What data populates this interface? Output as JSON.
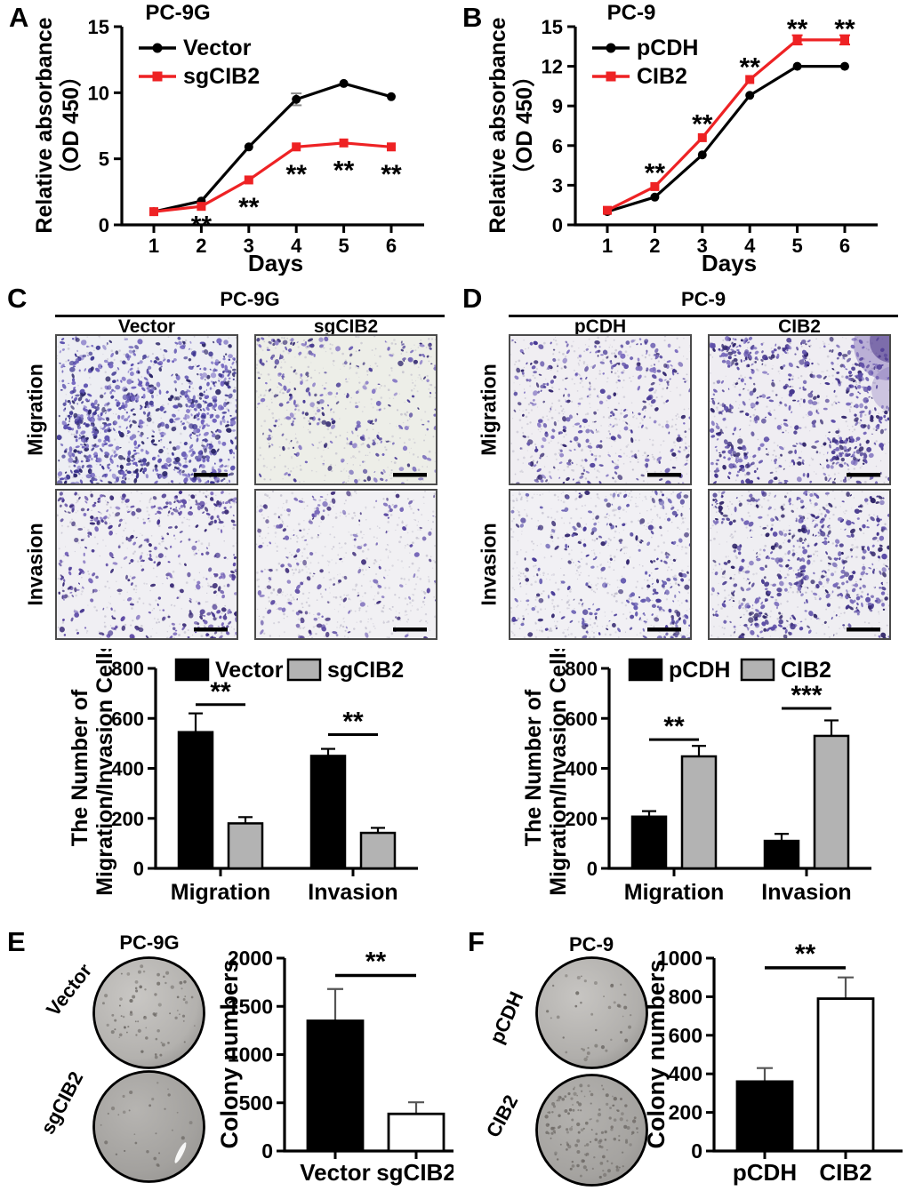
{
  "colors": {
    "accent_red": "#ee2224",
    "black": "#000000",
    "bar_gray": "#b3b3b3",
    "bar_white": "#ffffff",
    "stain_purple": "#5a4fae",
    "dish_gray": "#b3b1ae"
  },
  "panels": {
    "A": {
      "letter": "A"
    },
    "B": {
      "letter": "B"
    },
    "C": {
      "letter": "C",
      "header": "PC-9G",
      "columns": [
        "Vector",
        "sgCIB2"
      ],
      "rows": [
        "Migration",
        "Invasion"
      ],
      "micrographs": [
        {
          "seed": 11,
          "cells": 950,
          "speckles": 260,
          "bg": "#edeef3",
          "palette": [
            "#3c3490",
            "#5a4fae",
            "#6f61bd",
            "#2c2668",
            "#8a7fca"
          ],
          "cluster": 0.3
        },
        {
          "seed": 12,
          "cells": 300,
          "speckles": 420,
          "bg": "#edeee8",
          "palette": [
            "#4a3c96",
            "#6a5cb5",
            "#8577c5",
            "#342a72"
          ],
          "cluster": 0.4
        },
        {
          "seed": 13,
          "cells": 430,
          "speckles": 330,
          "bg": "#f0eff3",
          "palette": [
            "#45348e",
            "#5c48a4",
            "#3a2b76",
            "#7a68bb"
          ],
          "cluster": 0.5
        },
        {
          "seed": 14,
          "cells": 165,
          "speckles": 520,
          "bg": "#f1f0f3",
          "palette": [
            "#5a48a2",
            "#7666b8",
            "#46357f"
          ],
          "cluster": 0.25
        }
      ]
    },
    "D": {
      "letter": "D",
      "header": "PC-9",
      "columns": [
        "pCDH",
        "CIB2"
      ],
      "rows": [
        "Migration",
        "Invasion"
      ],
      "micrographs": [
        {
          "seed": 21,
          "cells": 330,
          "speckles": 470,
          "bg": "#f0eef2",
          "palette": [
            "#473896",
            "#6253ab",
            "#35286f",
            "#7e6fc0"
          ],
          "cluster": 0.3
        },
        {
          "seed": 22,
          "cells": 620,
          "speckles": 300,
          "bg": "#efedf2",
          "palette": [
            "#43348c",
            "#5d4ea8",
            "#31266b",
            "#7668ba"
          ],
          "cluster": 0.45,
          "blob": true
        },
        {
          "seed": 23,
          "cells": 260,
          "speckles": 560,
          "bg": "#f1f0f4",
          "palette": [
            "#483a97",
            "#655bb0",
            "#372b72"
          ],
          "cluster": 0.3
        },
        {
          "seed": 24,
          "cells": 560,
          "speckles": 380,
          "bg": "#efeef2",
          "palette": [
            "#41338a",
            "#5b4ca6",
            "#2f2467",
            "#7365b7"
          ],
          "cluster": 0.4
        }
      ]
    },
    "E": {
      "letter": "E",
      "title": "PC-9G",
      "dish_labels": [
        "Vector",
        "sgCIB2"
      ],
      "dishes": [
        {
          "seed": 31,
          "colonies": 75,
          "light": "#c9c7c4",
          "base": "#b3b1ae"
        },
        {
          "seed": 32,
          "colonies": 30,
          "light": "#b6b4b1",
          "base": "#a3a19e",
          "streak": true
        }
      ]
    },
    "F": {
      "letter": "F",
      "title": "PC-9",
      "dish_labels": [
        "pCDH",
        "CIB2"
      ],
      "dishes": [
        {
          "seed": 41,
          "colonies": 42,
          "light": "#c7c5c2",
          "base": "#b0aeab"
        },
        {
          "seed": 42,
          "colonies": 150,
          "light": "#b4b2af",
          "base": "#a5a3a0"
        }
      ]
    }
  },
  "chart_data": [
    {
      "panel": "A",
      "type": "line",
      "title": "PC-9G",
      "xlabel": "Days",
      "ylabel": [
        "Relative absorbance",
        "（OD 450）"
      ],
      "x": [
        1,
        2,
        3,
        4,
        5,
        6
      ],
      "ylim": [
        0,
        15
      ],
      "yticks": [
        0,
        5,
        10,
        15
      ],
      "series": [
        {
          "name": "Vector",
          "color": "#000000",
          "marker": "circle",
          "values": [
            1.0,
            1.8,
            5.9,
            9.5,
            10.7,
            9.7
          ],
          "errors": [
            0,
            0,
            0,
            0.45,
            0,
            0
          ]
        },
        {
          "name": "sgCIB2",
          "color": "#ee2224",
          "marker": "square",
          "values": [
            1.0,
            1.4,
            3.4,
            5.9,
            6.2,
            5.9
          ],
          "errors": [
            0,
            0,
            0,
            0,
            0,
            0
          ]
        }
      ],
      "significance": {
        "label": "**",
        "marks": [
          {
            "day": 2,
            "y": 0.45
          },
          {
            "day": 3,
            "y": 1.8
          },
          {
            "day": 4,
            "y": 4.3
          },
          {
            "day": 5,
            "y": 4.6
          },
          {
            "day": 6,
            "y": 4.3
          }
        ]
      }
    },
    {
      "panel": "B",
      "type": "line",
      "title": "PC-9",
      "xlabel": "Days",
      "ylabel": [
        "Relative absorbance",
        "（OD 450）"
      ],
      "x": [
        1,
        2,
        3,
        4,
        5,
        6
      ],
      "ylim": [
        0,
        15
      ],
      "yticks": [
        0,
        3,
        6,
        9,
        12,
        15
      ],
      "series": [
        {
          "name": "pCDH",
          "color": "#000000",
          "marker": "circle",
          "values": [
            1.0,
            2.1,
            5.3,
            9.8,
            12.0,
            12.0
          ],
          "errors": [
            0,
            0,
            0,
            0,
            0,
            0
          ]
        },
        {
          "name": "CIB2",
          "color": "#ee2224",
          "marker": "square",
          "values": [
            1.1,
            2.9,
            6.6,
            11.0,
            14.0,
            14.0
          ],
          "errors": [
            0,
            0,
            0,
            0,
            0.35,
            0.35
          ]
        }
      ],
      "significance": {
        "label": "**",
        "marks": [
          {
            "day": 2,
            "y": 4.4
          },
          {
            "day": 3,
            "y": 8.1
          },
          {
            "day": 4,
            "y": 12.4
          },
          {
            "day": 5,
            "y": 15.3
          },
          {
            "day": 6,
            "y": 15.3
          }
        ]
      }
    },
    {
      "panel": "C",
      "type": "grouped-bar",
      "categories": [
        "Migration",
        "Invasion"
      ],
      "ylabel": [
        "The Number of",
        "Migration/Invasion Cells"
      ],
      "ylim": [
        0,
        800
      ],
      "yticks": [
        0,
        200,
        400,
        600,
        800
      ],
      "series": [
        {
          "name": "Vector",
          "fill": "#000000",
          "values": [
            545,
            450
          ],
          "errors": [
            75,
            28
          ]
        },
        {
          "name": "sgCIB2",
          "fill": "#b3b3b3",
          "values": [
            180,
            142
          ],
          "errors": [
            25,
            20
          ]
        }
      ],
      "significance": [
        {
          "category": 0,
          "label": "**",
          "y": 655
        },
        {
          "category": 1,
          "label": "**",
          "y": 535
        }
      ]
    },
    {
      "panel": "D",
      "type": "grouped-bar",
      "categories": [
        "Migration",
        "Invasion"
      ],
      "ylabel": [
        "The Number of",
        "Migration/Invasion Cells"
      ],
      "ylim": [
        0,
        800
      ],
      "yticks": [
        0,
        200,
        400,
        600,
        800
      ],
      "series": [
        {
          "name": "pCDH",
          "fill": "#000000",
          "values": [
            207,
            110
          ],
          "errors": [
            22,
            28
          ]
        },
        {
          "name": "CIB2",
          "fill": "#b3b3b3",
          "values": [
            448,
            530
          ],
          "errors": [
            42,
            62
          ]
        }
      ],
      "significance": [
        {
          "category": 0,
          "label": "**",
          "y": 515
        },
        {
          "category": 1,
          "label": "***",
          "y": 640
        }
      ]
    },
    {
      "panel": "E",
      "type": "bar",
      "ylabel": "Colony numbers",
      "ylim": [
        0,
        2000
      ],
      "yticks": [
        0,
        500,
        1000,
        1500,
        2000
      ],
      "bars": [
        {
          "label": "Vector",
          "fill": "#000000",
          "value": 1350,
          "error": 330
        },
        {
          "label": "sgCIB2",
          "fill": "#ffffff",
          "value": 385,
          "error": 120
        }
      ],
      "significance": {
        "label": "**",
        "y": 1820
      }
    },
    {
      "panel": "F",
      "type": "bar",
      "ylabel": "Colony numbers",
      "ylim": [
        0,
        1000
      ],
      "yticks": [
        0,
        200,
        400,
        600,
        800,
        1000
      ],
      "bars": [
        {
          "label": "pCDH",
          "fill": "#000000",
          "value": 360,
          "error": 70
        },
        {
          "label": "CIB2",
          "fill": "#ffffff",
          "value": 790,
          "error": 110
        }
      ],
      "significance": {
        "label": "**",
        "y": 950
      }
    }
  ]
}
